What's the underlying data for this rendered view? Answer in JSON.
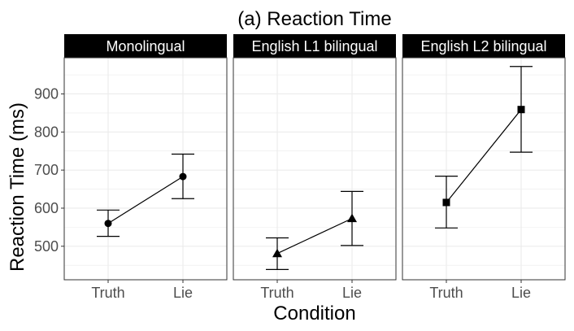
{
  "chart_data": {
    "type": "line",
    "title": "(a) Reaction Time",
    "xlabel": "Condition",
    "ylabel": "Reaction Time (ms)",
    "categories": [
      "Truth",
      "Lie"
    ],
    "ylim": [
      412,
      995
    ],
    "yticks": [
      500,
      600,
      700,
      800,
      900
    ],
    "grid": true,
    "error_bars": true,
    "panels": [
      {
        "name": "Monolingual",
        "marker": "circle",
        "values": [
          560,
          683
        ],
        "lower": [
          526,
          625
        ],
        "upper": [
          595,
          742
        ]
      },
      {
        "name": "English L1 bilingual",
        "marker": "triangle",
        "values": [
          481,
          573
        ],
        "lower": [
          439,
          502
        ],
        "upper": [
          522,
          644
        ]
      },
      {
        "name": "English L2 bilingual",
        "marker": "square",
        "values": [
          615,
          859
        ],
        "lower": [
          548,
          747
        ],
        "upper": [
          684,
          972
        ]
      }
    ]
  }
}
